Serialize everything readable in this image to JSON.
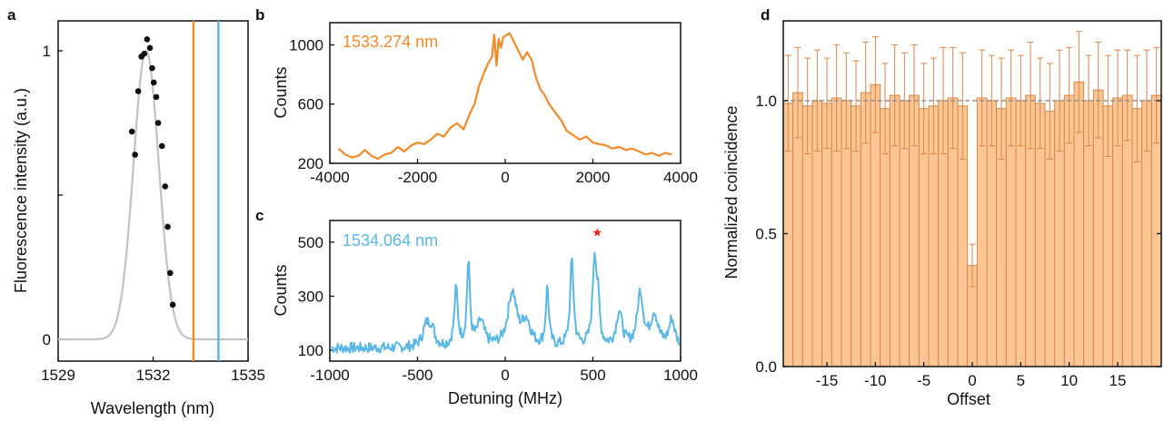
{
  "colors": {
    "orange": "#f28a2a",
    "blue": "#5bb8e6",
    "gray_fit": "#c2c2c2",
    "bar_fill": "#fcc594",
    "bar_edge": "#d7874a",
    "star": "#e8232b",
    "ref_line": "#8c8c8c"
  },
  "chart_data": [
    {
      "panel": "a",
      "type": "scatter",
      "xlabel": "Wavelength (nm)",
      "ylabel": "Fluorescence intensity (a.u.)",
      "xlim": [
        1529,
        1535
      ],
      "ylim": [
        0,
        1
      ],
      "xticks": [
        {
          "v": 1529,
          "label": "1529"
        },
        {
          "v": 1532,
          "label": "1532"
        },
        {
          "v": 1535,
          "label": "1535"
        }
      ],
      "yticks": [
        {
          "v": 0,
          "label": "0"
        },
        {
          "v": 1,
          "label": "1"
        }
      ],
      "points": [
        {
          "x": 1531.33,
          "y": 0.72
        },
        {
          "x": 1531.43,
          "y": 0.64
        },
        {
          "x": 1531.53,
          "y": 0.86
        },
        {
          "x": 1531.63,
          "y": 0.98
        },
        {
          "x": 1531.72,
          "y": 0.99
        },
        {
          "x": 1531.81,
          "y": 1.04
        },
        {
          "x": 1531.9,
          "y": 1.01
        },
        {
          "x": 1531.97,
          "y": 0.94
        },
        {
          "x": 1532.02,
          "y": 0.89
        },
        {
          "x": 1532.1,
          "y": 0.84
        },
        {
          "x": 1532.16,
          "y": 0.75
        },
        {
          "x": 1532.28,
          "y": 0.67
        },
        {
          "x": 1532.38,
          "y": 0.53
        },
        {
          "x": 1532.46,
          "y": 0.39
        },
        {
          "x": 1532.54,
          "y": 0.23
        },
        {
          "x": 1532.62,
          "y": 0.12
        }
      ],
      "fit": {
        "center": 1531.78,
        "sigma": 0.4,
        "amplitude": 1.0
      },
      "vlines": [
        {
          "x": 1533.274,
          "color": "#f28a2a"
        },
        {
          "x": 1534.064,
          "color": "#5bb8e6"
        }
      ]
    },
    {
      "panel": "b",
      "type": "line",
      "annotation": "1533.274 nm",
      "ylabel": "Counts",
      "xlabel": "",
      "xlim": [
        -4000,
        4000
      ],
      "ylim": [
        200,
        1150
      ],
      "xticks": [
        {
          "v": -4000,
          "label": "-4000"
        },
        {
          "v": -2000,
          "label": "-2000"
        },
        {
          "v": 0,
          "label": "0"
        },
        {
          "v": 2000,
          "label": "2000"
        },
        {
          "v": 4000,
          "label": "4000"
        }
      ],
      "yticks": [
        {
          "v": 200,
          "label": "200"
        },
        {
          "v": 600,
          "label": "600"
        },
        {
          "v": 1000,
          "label": "1000"
        }
      ],
      "series": [
        {
          "color": "#f28a2a",
          "x": [
            -3800,
            -3650,
            -3500,
            -3350,
            -3200,
            -3050,
            -2900,
            -2750,
            -2600,
            -2450,
            -2300,
            -2150,
            -2000,
            -1850,
            -1700,
            -1550,
            -1400,
            -1250,
            -1100,
            -950,
            -800,
            -700,
            -600,
            -500,
            -400,
            -300,
            -250,
            -200,
            -150,
            -100,
            -50,
            0,
            100,
            200,
            300,
            400,
            500,
            600,
            700,
            800,
            900,
            1000,
            1100,
            1200,
            1300,
            1400,
            1550,
            1700,
            1850,
            2000,
            2150,
            2300,
            2450,
            2600,
            2750,
            2900,
            3050,
            3200,
            3350,
            3500,
            3650,
            3800
          ],
          "values": [
            300,
            260,
            240,
            250,
            290,
            250,
            230,
            260,
            270,
            310,
            280,
            320,
            340,
            330,
            360,
            400,
            380,
            440,
            470,
            430,
            540,
            600,
            720,
            800,
            870,
            920,
            1070,
            860,
            1040,
            980,
            1050,
            1060,
            1080,
            1020,
            960,
            900,
            950,
            900,
            780,
            700,
            660,
            600,
            560,
            520,
            480,
            420,
            390,
            360,
            380,
            340,
            330,
            320,
            300,
            310,
            290,
            300,
            280,
            260,
            270,
            250,
            270,
            260
          ]
        }
      ]
    },
    {
      "panel": "c",
      "type": "line",
      "annotation": "1534.064 nm",
      "ylabel": "Counts",
      "xlabel": "Detuning (MHz)",
      "xlim": [
        -1000,
        1000
      ],
      "ylim": [
        60,
        580
      ],
      "xticks": [
        {
          "v": -1000,
          "label": "-1000"
        },
        {
          "v": -500,
          "label": "-500"
        },
        {
          "v": 0,
          "label": "0"
        },
        {
          "v": 500,
          "label": "500"
        },
        {
          "v": 1000,
          "label": "1000"
        }
      ],
      "yticks": [
        {
          "v": 100,
          "label": "100"
        },
        {
          "v": 300,
          "label": "300"
        },
        {
          "v": 500,
          "label": "500"
        }
      ],
      "star": {
        "x": 525,
        "y": 535
      },
      "series": [
        {
          "color": "#5bb8e6",
          "peaks": [
            {
              "c": -450,
              "a": 75,
              "w": 25
            },
            {
              "c": -420,
              "a": 60,
              "w": 20
            },
            {
              "c": -280,
              "a": 210,
              "w": 12
            },
            {
              "c": -210,
              "a": 310,
              "w": 10
            },
            {
              "c": -140,
              "a": 90,
              "w": 25
            },
            {
              "c": 40,
              "a": 200,
              "w": 30
            },
            {
              "c": 120,
              "a": 90,
              "w": 30
            },
            {
              "c": 240,
              "a": 220,
              "w": 10
            },
            {
              "c": 380,
              "a": 320,
              "w": 12
            },
            {
              "c": 510,
              "a": 330,
              "w": 14
            },
            {
              "c": 530,
              "a": 120,
              "w": 10
            },
            {
              "c": 650,
              "a": 130,
              "w": 20
            },
            {
              "c": 770,
              "a": 200,
              "w": 20
            },
            {
              "c": 850,
              "a": 120,
              "w": 25
            },
            {
              "c": 950,
              "a": 100,
              "w": 20
            }
          ],
          "baseline": 108
        }
      ]
    },
    {
      "panel": "d",
      "type": "bar",
      "xlabel": "Offset",
      "ylabel": "Normalized coincidence",
      "xlim": [
        -19.5,
        19.5
      ],
      "ylim": [
        0,
        1.3
      ],
      "xticks": [
        {
          "v": -15,
          "label": "-15"
        },
        {
          "v": -10,
          "label": "-10"
        },
        {
          "v": -5,
          "label": "-5"
        },
        {
          "v": 0,
          "label": "0"
        },
        {
          "v": 5,
          "label": "5"
        },
        {
          "v": 10,
          "label": "10"
        },
        {
          "v": 15,
          "label": "15"
        }
      ],
      "yticks": [
        {
          "v": 0,
          "label": "0.0"
        },
        {
          "v": 0.5,
          "label": "0.5"
        },
        {
          "v": 1.0,
          "label": "1.0"
        }
      ],
      "reference_line": 1.0,
      "categories": [
        -19,
        -18,
        -17,
        -16,
        -15,
        -14,
        -13,
        -12,
        -11,
        -10,
        -9,
        -8,
        -7,
        -6,
        -5,
        -4,
        -3,
        -2,
        -1,
        0,
        1,
        2,
        3,
        4,
        5,
        6,
        7,
        8,
        9,
        10,
        11,
        12,
        13,
        14,
        15,
        16,
        17,
        18,
        19
      ],
      "values": [
        0.99,
        1.03,
        0.98,
        1.0,
        0.99,
        1.01,
        1.0,
        0.98,
        1.03,
        1.06,
        0.97,
        1.02,
        1.0,
        1.02,
        0.97,
        0.98,
        1.0,
        1.01,
        0.98,
        0.38,
        1.01,
        1.0,
        0.97,
        1.01,
        1.0,
        1.02,
        0.99,
        0.96,
        1.0,
        1.02,
        1.07,
        1.0,
        1.04,
        0.98,
        1.01,
        1.02,
        0.97,
        1.0,
        1.02
      ],
      "errors": [
        0.18,
        0.17,
        0.18,
        0.19,
        0.17,
        0.2,
        0.18,
        0.17,
        0.19,
        0.18,
        0.17,
        0.19,
        0.18,
        0.19,
        0.17,
        0.18,
        0.2,
        0.19,
        0.2,
        0.08,
        0.18,
        0.17,
        0.19,
        0.18,
        0.17,
        0.2,
        0.17,
        0.18,
        0.19,
        0.18,
        0.19,
        0.17,
        0.18,
        0.19,
        0.18,
        0.17,
        0.2,
        0.19,
        0.18
      ]
    }
  ]
}
